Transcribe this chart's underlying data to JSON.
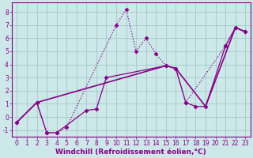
{
  "bg_color": "#cce8e8",
  "grid_color": "#aacccc",
  "line_color": "#880088",
  "xlabel": "Windchill (Refroidissement éolien,°C)",
  "xlim": [
    -0.5,
    23.5
  ],
  "ylim": [
    -1.5,
    8.7
  ],
  "yticks": [
    -1,
    0,
    1,
    2,
    3,
    4,
    5,
    6,
    7,
    8
  ],
  "xticks": [
    0,
    1,
    2,
    3,
    4,
    5,
    6,
    7,
    8,
    9,
    10,
    11,
    12,
    13,
    14,
    15,
    16,
    17,
    18,
    19,
    20,
    21,
    22,
    23
  ],
  "line1_x": [
    0,
    2,
    3,
    4,
    5,
    10,
    11,
    12,
    13,
    14,
    15,
    16,
    17,
    21,
    22,
    23
  ],
  "line1_y": [
    -0.4,
    1.1,
    -1.2,
    -1.2,
    -0.8,
    7.0,
    8.2,
    5.0,
    6.0,
    4.8,
    3.9,
    3.7,
    1.1,
    5.4,
    6.8,
    6.5
  ],
  "line2_x": [
    0,
    2,
    3,
    4,
    7,
    8,
    9,
    15,
    16,
    17,
    18,
    19,
    21,
    22,
    23
  ],
  "line2_y": [
    -0.4,
    1.1,
    -1.2,
    -1.2,
    0.5,
    0.6,
    3.0,
    3.9,
    3.7,
    1.1,
    0.8,
    0.8,
    5.4,
    6.8,
    6.5
  ],
  "line3_x": [
    0,
    2,
    15,
    16,
    19,
    22,
    23
  ],
  "line3_y": [
    -0.4,
    1.1,
    3.9,
    3.7,
    0.8,
    6.8,
    6.5
  ],
  "marker": "D",
  "marker_size": 2.5,
  "line_width": 0.9,
  "xlabel_fontsize": 6.5,
  "tick_fontsize": 5.5,
  "tick_color": "#880088"
}
